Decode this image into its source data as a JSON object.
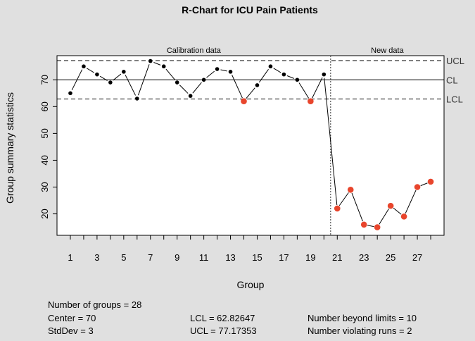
{
  "chart_data": {
    "type": "line",
    "title": "R-Chart for ICU Pain Patients",
    "xlabel": "Group",
    "ylabel": "Group summary statistics",
    "x": [
      1,
      2,
      3,
      4,
      5,
      6,
      7,
      8,
      9,
      10,
      11,
      12,
      13,
      14,
      15,
      16,
      17,
      18,
      19,
      20,
      21,
      22,
      23,
      24,
      25,
      26,
      27,
      28
    ],
    "values": [
      65,
      75,
      72,
      69,
      73,
      63,
      77,
      75,
      69,
      64,
      70,
      74,
      73,
      62,
      68,
      75,
      72,
      70,
      62,
      72,
      22,
      29,
      16,
      15,
      23,
      19,
      30,
      32
    ],
    "out_of_control": [
      14,
      19,
      21,
      22,
      23,
      24,
      25,
      26,
      27,
      28
    ],
    "x_ticks": [
      1,
      3,
      5,
      7,
      9,
      11,
      13,
      15,
      17,
      19,
      21,
      23,
      25,
      27
    ],
    "y_ticks": [
      20,
      30,
      40,
      50,
      60,
      70
    ],
    "ylim": [
      12,
      79
    ],
    "xlim": [
      0,
      29
    ],
    "calibration_end": 20,
    "sections": [
      "Calibration data",
      "New data"
    ],
    "limits": [
      {
        "label": "UCL",
        "value": 77.17353,
        "style": "dashed"
      },
      {
        "label": "CL",
        "value": 70,
        "style": "solid"
      },
      {
        "label": "LCL",
        "value": 62.82647,
        "style": "dashed"
      }
    ],
    "colors": {
      "normal": "#000000",
      "violation": "#e8452c"
    }
  },
  "stats": {
    "groups": "Number of groups = 28",
    "center": "Center = 70",
    "stddev": "StdDev = 3",
    "lcl": "LCL = 62.82647",
    "ucl": "UCL = 77.17353",
    "beyond": "Number beyond limits = 10",
    "runs": "Number violating runs = 2"
  }
}
